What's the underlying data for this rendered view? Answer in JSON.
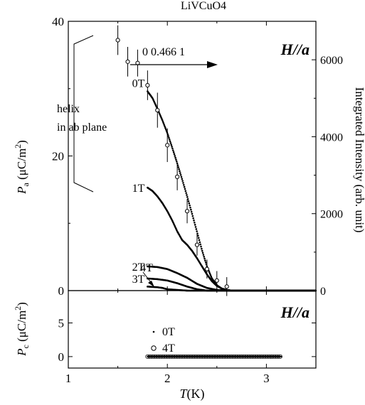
{
  "chart_data": [
    {
      "type": "scatter",
      "title": "LiVCuO4",
      "panel_label": "H//a",
      "xlim": [
        1,
        3.5
      ],
      "ylim": [
        0,
        40
      ],
      "ylim_right": [
        0,
        7000
      ],
      "xticks": [
        1,
        2,
        3
      ],
      "xtick_labels": [
        "1",
        "2",
        "3"
      ],
      "yticks_left": [
        0,
        20,
        40
      ],
      "ytick_labels_left": [
        "0",
        "20",
        "40"
      ],
      "yticks_right": [
        0,
        2000,
        4000,
        6000
      ],
      "ytick_labels_right": [
        "0",
        "2000",
        "4000",
        "6000"
      ],
      "ylabel_left": "Pa (μC/m2)",
      "ylabel_right": "Integrated Intensity (arb. unit)",
      "annotations": [
        "helix",
        "in ab plane",
        "0 0.466 1"
      ],
      "series": [
        {
          "name": "0T",
          "x": [
            1.8,
            1.85,
            1.9,
            1.95,
            2.0,
            2.05,
            2.1,
            2.15,
            2.2,
            2.25,
            2.3,
            2.35,
            2.4,
            2.45,
            2.5,
            2.55,
            2.6,
            2.65,
            2.7,
            2.8,
            3.0,
            3.5
          ],
          "y": [
            29.6,
            28.6,
            27.0,
            25.3,
            23.4,
            21.2,
            18.9,
            16.5,
            14.0,
            11.4,
            8.7,
            6.0,
            3.6,
            1.8,
            0.8,
            0.3,
            0.1,
            0.0,
            0.0,
            0.0,
            0.0,
            0.0
          ]
        },
        {
          "name": "1T",
          "x": [
            1.8,
            1.85,
            1.9,
            1.95,
            2.0,
            2.05,
            2.1,
            2.15,
            2.2,
            2.25,
            2.3,
            2.35,
            2.4,
            2.45,
            2.5,
            2.55,
            2.6,
            2.65,
            2.7,
            3.0,
            3.5
          ],
          "y": [
            15.3,
            14.8,
            14.0,
            13.0,
            11.8,
            10.4,
            8.8,
            7.5,
            6.8,
            5.9,
            4.8,
            3.6,
            2.4,
            1.4,
            0.7,
            0.3,
            0.1,
            0.0,
            0.0,
            0.0,
            0.0
          ]
        },
        {
          "name": "2T",
          "x": [
            1.8,
            1.9,
            2.0,
            2.1,
            2.2,
            2.3,
            2.4,
            2.5,
            2.6,
            3.0,
            3.5
          ],
          "y": [
            3.6,
            3.5,
            3.2,
            2.6,
            1.9,
            1.0,
            0.4,
            0.1,
            0.0,
            0.0,
            0.0
          ]
        },
        {
          "name": "3T",
          "x": [
            1.8,
            1.9,
            2.0,
            2.1,
            2.2,
            2.3,
            2.4,
            2.5,
            3.0,
            3.5
          ],
          "y": [
            1.8,
            1.7,
            1.5,
            1.1,
            0.6,
            0.2,
            0.0,
            0.0,
            0.0,
            0.0
          ]
        },
        {
          "name": "4T",
          "x": [
            1.8,
            1.9,
            1.95,
            2.0,
            2.1,
            2.2,
            2.3,
            3.0,
            3.5
          ],
          "y": [
            0.6,
            0.5,
            0.4,
            0.2,
            0.1,
            0.0,
            0.0,
            0.0,
            0.0
          ]
        },
        {
          "name": "Integrated Intensity (0 0.466 1)",
          "x": [
            1.5,
            1.6,
            1.7,
            1.8,
            1.9,
            2.0,
            2.1,
            2.2,
            2.3,
            2.4,
            2.5,
            2.6
          ],
          "y": [
            37.2,
            34.0,
            33.8,
            30.5,
            26.8,
            21.6,
            16.9,
            11.8,
            6.8,
            3.2,
            1.5,
            0.6
          ],
          "yerr": [
            2.2,
            2.2,
            2.0,
            2.2,
            2.6,
            2.5,
            2.0,
            1.8,
            1.6,
            1.4,
            1.4,
            1.4
          ]
        }
      ]
    },
    {
      "type": "scatter",
      "panel_label": "H//a",
      "xlim": [
        1,
        3.5
      ],
      "ylim": [
        -1.7,
        9.8
      ],
      "xticks": [
        1,
        2,
        3
      ],
      "xtick_labels": [
        "1",
        "2",
        "3"
      ],
      "yticks": [
        0,
        5
      ],
      "ytick_labels": [
        "0",
        "5"
      ],
      "xlabel": "T(K)",
      "ylabel": "Pc (μC/m2)",
      "series": [
        {
          "name": "0T",
          "marker": "dot",
          "x_range": [
            1.8,
            3.15
          ],
          "x_step": 0.01,
          "y": 0
        },
        {
          "name": "4T",
          "marker": "open-circle",
          "x_range": [
            1.8,
            3.15
          ],
          "x_step": 0.02,
          "y": 0
        }
      ]
    }
  ]
}
